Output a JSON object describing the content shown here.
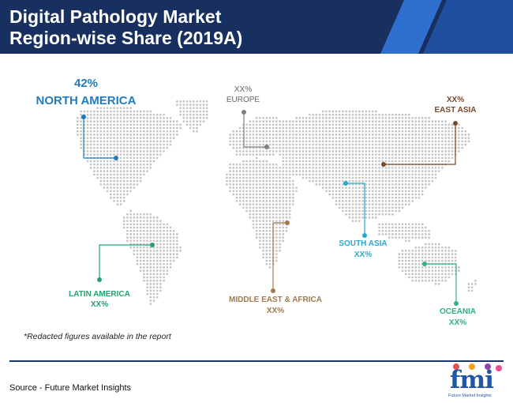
{
  "header": {
    "title_line1": "Digital Pathology Market",
    "title_line2": "Region-wise Share (2019A)"
  },
  "regions": [
    {
      "id": "north-america",
      "value": "42%",
      "name": "NORTH AMERICA",
      "color": "#1f7bbf"
    },
    {
      "id": "europe",
      "value": "XX%",
      "name": "EUROPE",
      "color": "#7f7f7f"
    },
    {
      "id": "east-asia",
      "value": "XX%",
      "name": "EAST ASIA",
      "color": "#7a4a2a"
    },
    {
      "id": "south-asia",
      "value": "XX%",
      "name": "SOUTH ASIA",
      "color": "#2ba6cc"
    },
    {
      "id": "latin-america",
      "value": "XX%",
      "name": "LATIN AMERICA",
      "color": "#23a36b"
    },
    {
      "id": "middle-east-africa",
      "value": "XX%",
      "name": "MIDDLE EAST & AFRICA",
      "color": "#a07a4e"
    },
    {
      "id": "oceania",
      "value": "XX%",
      "name": "OCEANIA",
      "color": "#2bb382"
    }
  ],
  "footnote": "*Redacted figures available in the report",
  "source": "Source - Future Market Insights",
  "logo": {
    "text": "fmi",
    "subtitle": "Future Market Insights"
  },
  "colors": {
    "header_bg": "#17305f",
    "header_stripe": "#2f6fce",
    "map_dots": "#c3c3c3",
    "rule": "#1a3566"
  }
}
